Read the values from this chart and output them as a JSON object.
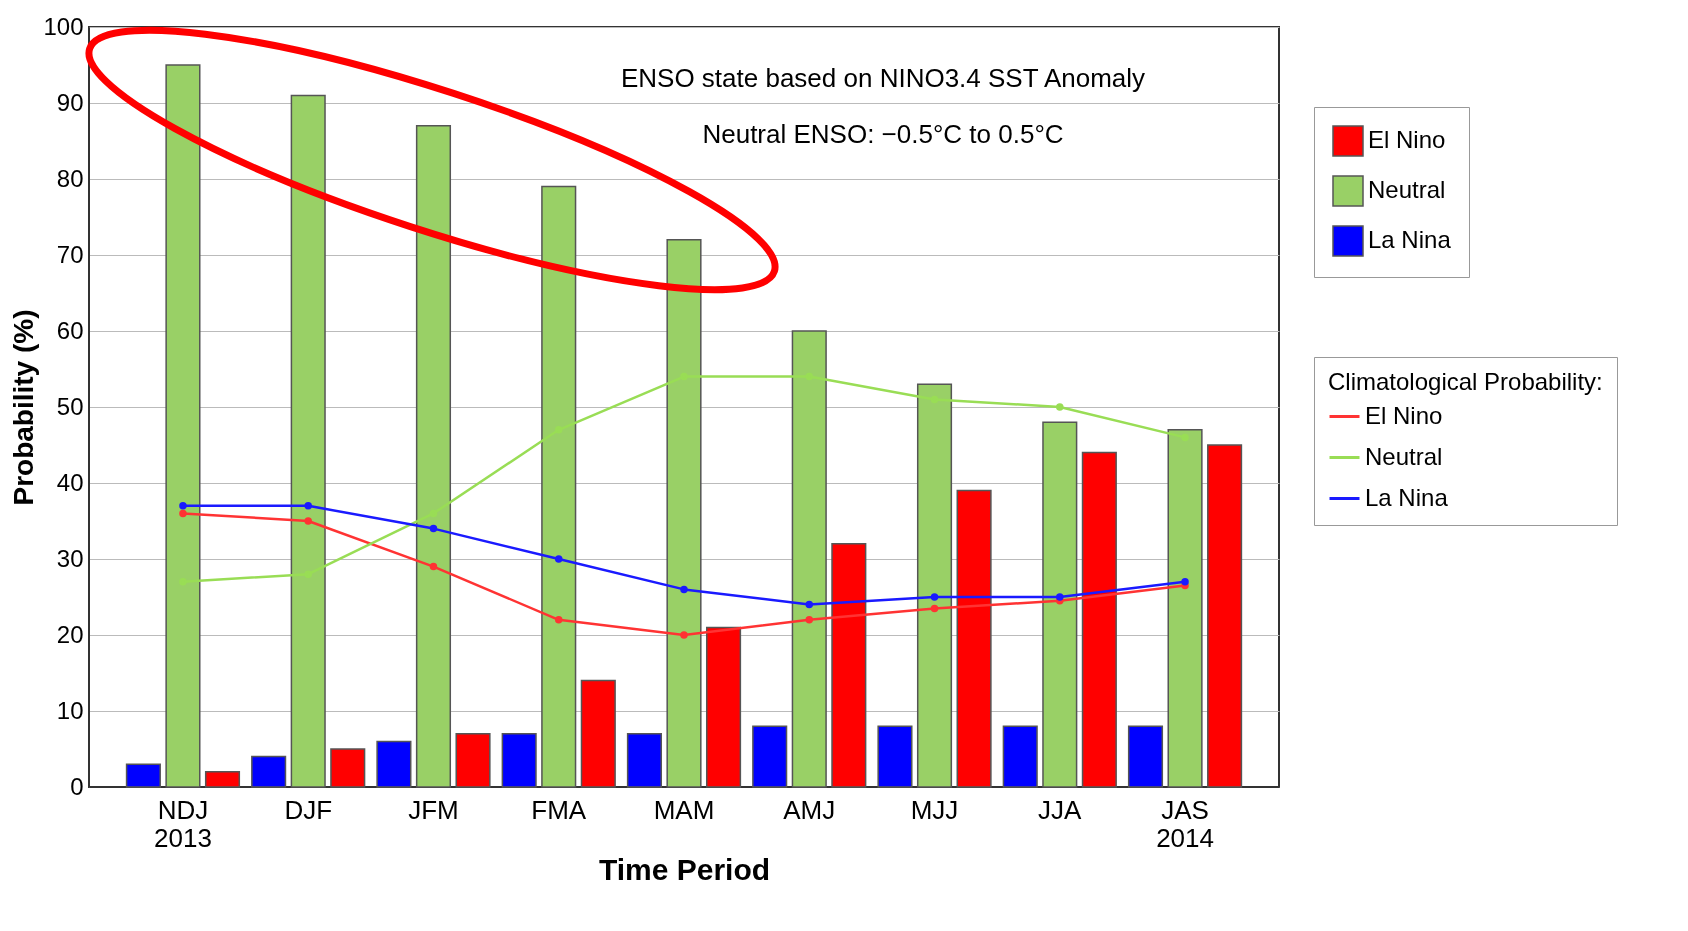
{
  "chart_data": {
    "type": "bar",
    "xlabel": "Time Period",
    "ylabel": "Probability (%)",
    "legend_title": "Climatological Probability:",
    "categories": [
      "NDJ\n2013",
      "DJF",
      "JFM",
      "FMA",
      "MAM",
      "AMJ",
      "MJJ",
      "JJA",
      "JAS\n2014"
    ],
    "series": [
      {
        "name": "La Nina",
        "color": "#0000ff",
        "values": [
          3,
          4,
          6,
          7,
          7,
          8,
          8,
          8,
          8
        ]
      },
      {
        "name": "Neutral",
        "color": "#99d066",
        "values": [
          95,
          91,
          87,
          79,
          72,
          60,
          53,
          48,
          47
        ]
      },
      {
        "name": "El Nino",
        "color": "#ff0000",
        "values": [
          2,
          5,
          7,
          14,
          21,
          32,
          39,
          44,
          45
        ]
      },
      {
        "name": "El Nino",
        "type": "line",
        "marker": "circle",
        "color": "#ff3333",
        "values": [
          36,
          35,
          29,
          22,
          20,
          22,
          23.5,
          24.5,
          26.5
        ]
      },
      {
        "name": "Neutral",
        "type": "line",
        "marker": "circle",
        "color": "#99dd55",
        "values": [
          27,
          28,
          36,
          47,
          54,
          54,
          51,
          50,
          46
        ]
      },
      {
        "name": "La Nina",
        "type": "line",
        "marker": "circle",
        "color": "#1a1aff",
        "values": [
          37,
          37,
          34,
          30,
          26,
          24,
          25,
          25,
          27
        ]
      }
    ],
    "ylim": [
      0,
      100
    ],
    "yticks": [
      0,
      10,
      20,
      30,
      40,
      50,
      60,
      70,
      80,
      90,
      100
    ],
    "grid": "y",
    "legend": "right",
    "annotations": [
      "ENSO state based on NINO3.4 SST Anomaly",
      "Neutral ENSO: −0.5°C to 0.5°C"
    ]
  }
}
